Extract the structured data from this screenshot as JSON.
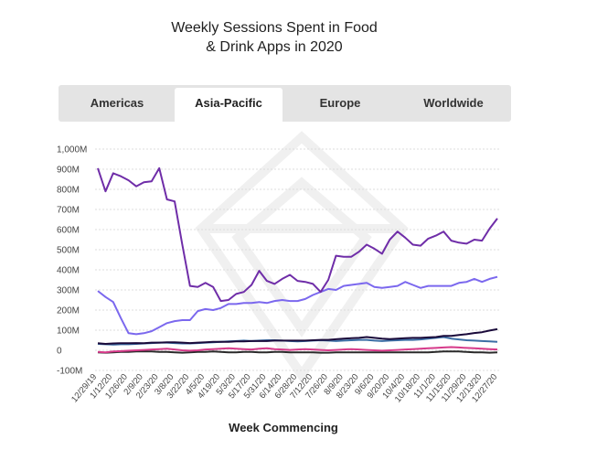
{
  "title_line1": "Weekly Sessions Spent in Food",
  "title_line2": "& Drink Apps in 2020",
  "tabs": [
    {
      "label": "Americas",
      "active": false
    },
    {
      "label": "Asia-Pacific",
      "active": true
    },
    {
      "label": "Europe",
      "active": false
    },
    {
      "label": "Worldwide",
      "active": false
    }
  ],
  "chart_data": {
    "type": "line",
    "xlabel": "Week Commencing",
    "ylabel": "",
    "ylim": [
      -100000000,
      1000000000
    ],
    "y_ticks": [
      {
        "value": 1000000000,
        "label": "1,000M"
      },
      {
        "value": 900000000,
        "label": "900M"
      },
      {
        "value": 800000000,
        "label": "800M"
      },
      {
        "value": 700000000,
        "label": "700M"
      },
      {
        "value": 600000000,
        "label": "600M"
      },
      {
        "value": 500000000,
        "label": "500M"
      },
      {
        "value": 400000000,
        "label": "400M"
      },
      {
        "value": 300000000,
        "label": "300M"
      },
      {
        "value": 200000000,
        "label": "200M"
      },
      {
        "value": 100000000,
        "label": "100M"
      },
      {
        "value": 0,
        "label": "0"
      },
      {
        "value": -100000000,
        "label": "-100M"
      }
    ],
    "grid": true,
    "x_tick_labels": [
      "12/29/19",
      "1/12/20",
      "1/26/20",
      "2/9/20",
      "2/23/20",
      "3/8/20",
      "3/22/20",
      "4/5/20",
      "4/19/20",
      "5/3/20",
      "5/17/20",
      "5/31/20",
      "6/14/20",
      "6/28/20",
      "7/12/20",
      "7/26/20",
      "8/9/20",
      "8/23/20",
      "9/6/20",
      "9/20/20",
      "10/4/20",
      "10/18/20",
      "11/1/20",
      "11/15/20",
      "11/29/20",
      "12/13/20",
      "12/27/20"
    ],
    "series": [
      {
        "color": "#6f2da8",
        "values": [
          905,
          790,
          880,
          865,
          845,
          815,
          835,
          840,
          905,
          750,
          740,
          525,
          320,
          315,
          335,
          315,
          245,
          250,
          280,
          290,
          325,
          395,
          345,
          330,
          355,
          375,
          345,
          340,
          330,
          290,
          350,
          470,
          465,
          465,
          490,
          525,
          505,
          480,
          550,
          590,
          560,
          525,
          520,
          555,
          570,
          590,
          545,
          535,
          530,
          550,
          545,
          605,
          655
        ]
      },
      {
        "color": "#7b68ee",
        "values": [
          295,
          265,
          240,
          160,
          85,
          80,
          85,
          95,
          115,
          135,
          145,
          150,
          150,
          195,
          205,
          200,
          210,
          230,
          230,
          235,
          235,
          240,
          235,
          245,
          250,
          245,
          245,
          255,
          275,
          290,
          305,
          300,
          320,
          325,
          330,
          335,
          315,
          310,
          315,
          320,
          340,
          325,
          310,
          320,
          320,
          320,
          320,
          335,
          340,
          355,
          340,
          355,
          365
        ]
      },
      {
        "color": "#1a0a3a",
        "values": [
          35,
          32,
          34,
          35,
          35,
          36,
          35,
          38,
          38,
          40,
          40,
          38,
          36,
          38,
          40,
          42,
          42,
          42,
          44,
          44,
          46,
          46,
          46,
          48,
          48,
          48,
          48,
          48,
          50,
          52,
          52,
          55,
          58,
          60,
          62,
          66,
          62,
          58,
          56,
          58,
          60,
          62,
          62,
          64,
          66,
          72,
          72,
          76,
          80,
          86,
          90,
          98,
          105
        ]
      },
      {
        "color": "#3b6ea5",
        "values": [
          32,
          30,
          28,
          30,
          30,
          32,
          34,
          36,
          38,
          38,
          36,
          34,
          34,
          36,
          38,
          40,
          42,
          44,
          46,
          48,
          46,
          48,
          50,
          50,
          48,
          46,
          44,
          46,
          48,
          50,
          48,
          46,
          48,
          50,
          52,
          52,
          48,
          46,
          48,
          50,
          52,
          52,
          54,
          58,
          62,
          66,
          58,
          54,
          50,
          48,
          46,
          44,
          42
        ]
      },
      {
        "color": "#d63a8a",
        "values": [
          -8,
          -10,
          -6,
          -4,
          -2,
          0,
          2,
          4,
          6,
          8,
          4,
          0,
          -2,
          0,
          4,
          6,
          8,
          10,
          8,
          6,
          4,
          8,
          10,
          6,
          4,
          2,
          4,
          6,
          4,
          2,
          0,
          2,
          4,
          6,
          4,
          2,
          0,
          -2,
          0,
          2,
          4,
          6,
          8,
          10,
          12,
          14,
          16,
          14,
          12,
          10,
          8,
          6,
          4
        ]
      },
      {
        "color": "#2a2a2a",
        "values": [
          -10,
          -12,
          -10,
          -8,
          -8,
          -6,
          -6,
          -6,
          -8,
          -8,
          -10,
          -12,
          -10,
          -8,
          -8,
          -6,
          -8,
          -10,
          -10,
          -8,
          -8,
          -10,
          -10,
          -8,
          -8,
          -10,
          -10,
          -10,
          -10,
          -12,
          -12,
          -10,
          -10,
          -10,
          -10,
          -10,
          -10,
          -10,
          -10,
          -10,
          -10,
          -10,
          -10,
          -10,
          -8,
          -6,
          -6,
          -6,
          -8,
          -10,
          -10,
          -12,
          -10
        ]
      }
    ]
  }
}
